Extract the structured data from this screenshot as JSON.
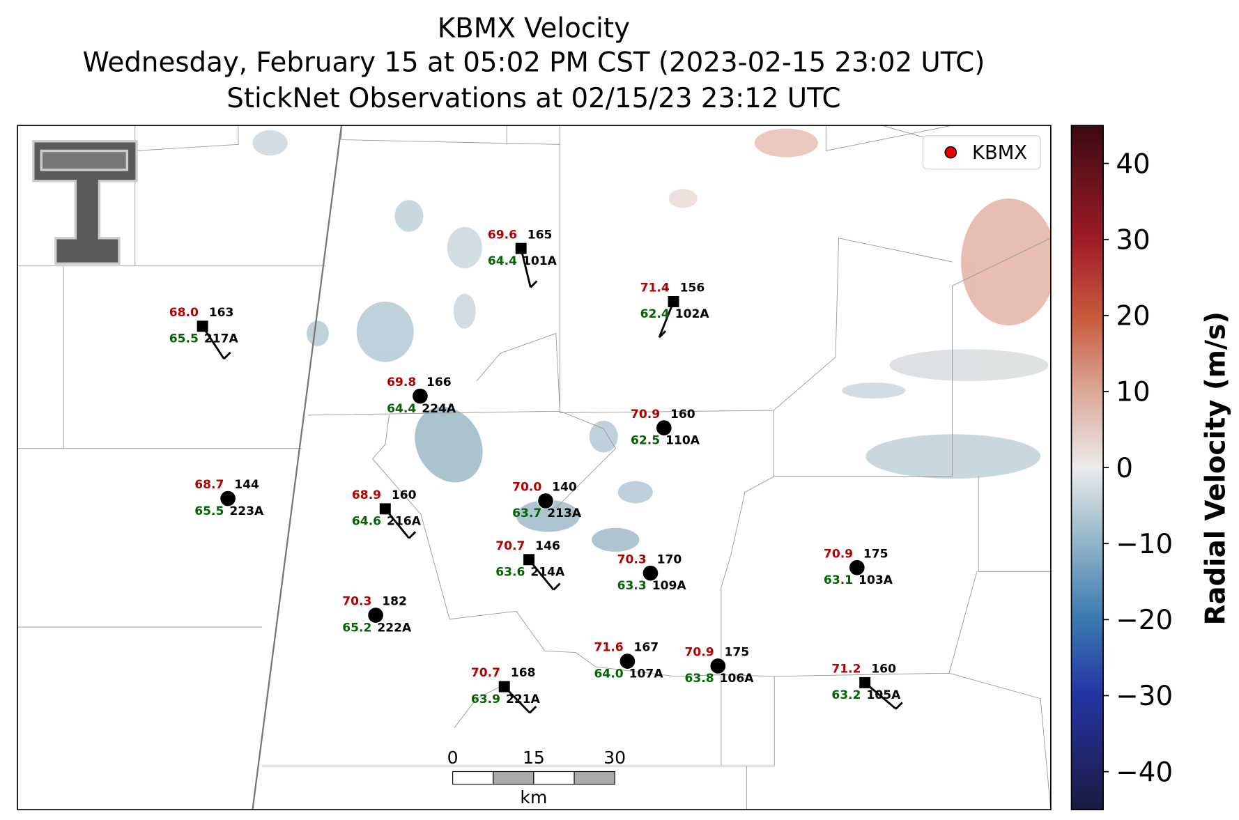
{
  "title": [
    "KBMX Velocity",
    "Wednesday, February 15 at 05:02 PM CST (2023-02-15 23:02 UTC)",
    "StickNet Observations at 02/15/23 23:12 UTC"
  ],
  "legend": "KBMX",
  "colorbar": {
    "label": "Radial Velocity (m/s)",
    "range": [
      -45,
      45
    ],
    "ticks": [
      {
        "value": -40,
        "label": "−40"
      },
      {
        "value": -30,
        "label": "−30"
      },
      {
        "value": -20,
        "label": "−20"
      },
      {
        "value": -10,
        "label": "−10"
      },
      0,
      10,
      20,
      30,
      40
    ]
  },
  "scale_bar": {
    "ticks": [
      0,
      15,
      30
    ],
    "unit": "km"
  },
  "stations": [
    {
      "id": "101A",
      "temp": "69.6",
      "pressure": "165",
      "dewpoint": "64.4"
    },
    {
      "id": "102A",
      "temp": "71.4",
      "pressure": "156",
      "dewpoint": "62.4"
    },
    {
      "id": "217A",
      "temp": "68.0",
      "pressure": "163",
      "dewpoint": "65.5"
    },
    {
      "id": "224A",
      "temp": "69.8",
      "pressure": "166",
      "dewpoint": "64.4"
    },
    {
      "id": "110A",
      "temp": "70.9",
      "pressure": "160",
      "dewpoint": "62.5"
    },
    {
      "id": "223A",
      "temp": "68.7",
      "pressure": "144",
      "dewpoint": "65.5"
    },
    {
      "id": "216A",
      "temp": "68.9",
      "pressure": "160",
      "dewpoint": "64.6"
    },
    {
      "id": "213A",
      "temp": "70.0",
      "pressure": "140",
      "dewpoint": "63.7"
    },
    {
      "id": "214A",
      "temp": "70.7",
      "pressure": "146",
      "dewpoint": "63.6"
    },
    {
      "id": "109A",
      "temp": "70.3",
      "pressure": "170",
      "dewpoint": "63.3"
    },
    {
      "id": "103A",
      "temp": "70.9",
      "pressure": "175",
      "dewpoint": "63.1"
    },
    {
      "id": "222A",
      "temp": "70.3",
      "pressure": "182",
      "dewpoint": "65.2"
    },
    {
      "id": "107A",
      "temp": "71.6",
      "pressure": "167",
      "dewpoint": "64.0"
    },
    {
      "id": "106A",
      "temp": "70.9",
      "pressure": "175",
      "dewpoint": "63.8"
    },
    {
      "id": "221A",
      "temp": "70.7",
      "pressure": "168",
      "dewpoint": "63.9"
    },
    {
      "id": "105A",
      "temp": "71.2",
      "pressure": "160",
      "dewpoint": "63.2"
    }
  ]
}
